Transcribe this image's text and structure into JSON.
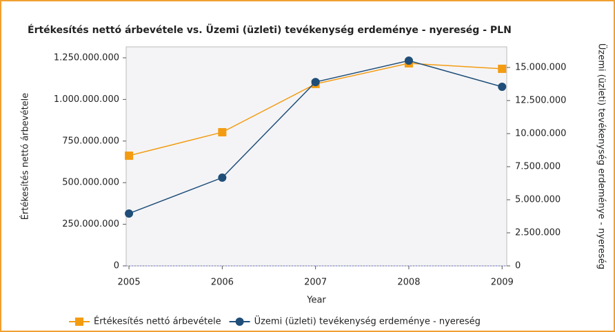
{
  "chart_data": {
    "type": "line",
    "title": "Értékesítés nettó árbevétele vs. Üzemi (üzleti) tevékenység erdeménye - nyereség - PLN",
    "x_label": "Year",
    "y_label": "Értékesítés nettó árbevétele",
    "y2_label": "Üzemi (üzleti) tevékenység erdeménye - nyereség",
    "x": [
      2005,
      2006,
      2007,
      2008,
      2009
    ],
    "xlim": [
      2004.97,
      2009.05
    ],
    "xticks": [
      2005,
      2006,
      2007,
      2008,
      2009
    ],
    "ylim": [
      0,
      1316000000
    ],
    "yticks": [
      0,
      {
        "value": 250000000,
        "label": "250.000.000"
      },
      {
        "value": 500000000,
        "label": "500.000.000"
      },
      {
        "value": 750000000,
        "label": "750.000.000"
      },
      {
        "value": 1000000000,
        "label": "1.000.000.000"
      },
      {
        "value": 1250000000,
        "label": "1.250.000.000"
      }
    ],
    "y2lim": [
      0,
      16560000
    ],
    "y2ticks": [
      0,
      {
        "value": 2500000,
        "label": "2.500.000"
      },
      {
        "value": 5000000,
        "label": "5.000.000"
      },
      {
        "value": 7500000,
        "label": "7.500.000"
      },
      {
        "value": 10000000,
        "label": "10.000.000"
      },
      {
        "value": 12500000,
        "label": "12.500.000"
      },
      {
        "value": 15000000,
        "label": "15.000.000"
      }
    ],
    "legend": "bottom",
    "series": [
      {
        "name": "Értékesítés nettó árbevétele",
        "color": "#f39c12",
        "marker": "square",
        "values": [
          662000000,
          803000000,
          1093000000,
          1217000000,
          1184000000
        ]
      },
      {
        "name": "Üzemi (üzleti) tevékenység erdeménye - nyereség",
        "color": "#1f4e79",
        "marker": "circle",
        "axis": "y2",
        "values": [
          3960000,
          6670000,
          13900000,
          15520000,
          13540000
        ]
      }
    ]
  }
}
